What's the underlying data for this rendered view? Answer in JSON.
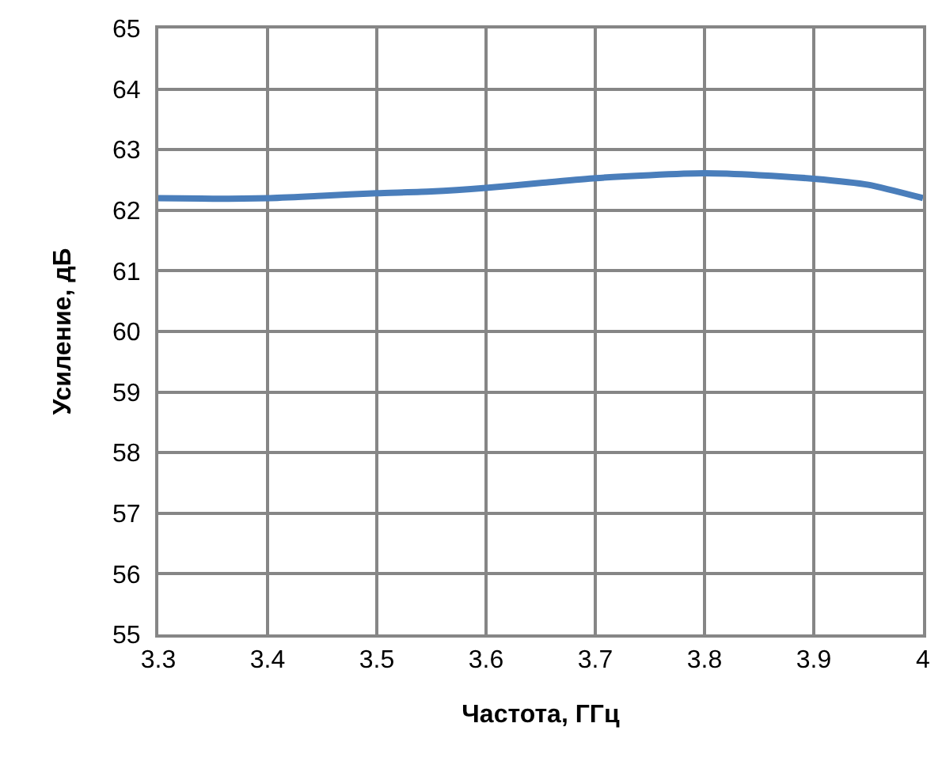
{
  "chart_data": {
    "type": "line",
    "xlabel": "Частота, ГГц",
    "ylabel": "Усиление, дБ",
    "x": [
      3.3,
      3.35,
      3.4,
      3.45,
      3.5,
      3.55,
      3.6,
      3.65,
      3.7,
      3.75,
      3.8,
      3.85,
      3.9,
      3.95,
      4.0
    ],
    "series": [
      {
        "color": "#4a7ebb",
        "values": [
          62.2,
          62.19,
          62.2,
          62.24,
          62.28,
          62.31,
          62.37,
          62.45,
          62.53,
          62.58,
          62.61,
          62.58,
          62.52,
          62.42,
          62.2
        ]
      }
    ],
    "xlim": [
      3.3,
      4.0
    ],
    "xticks": [
      3.3,
      3.4,
      3.5,
      3.6,
      3.7,
      3.8,
      3.9,
      {
        "value": 4.0,
        "label": "4"
      }
    ],
    "ylim": [
      55,
      65
    ],
    "yticks": [
      55,
      56,
      57,
      58,
      59,
      60,
      61,
      62,
      63,
      64,
      65
    ],
    "grid": true,
    "legend": false,
    "marker": "none",
    "line_style": "solid"
  }
}
